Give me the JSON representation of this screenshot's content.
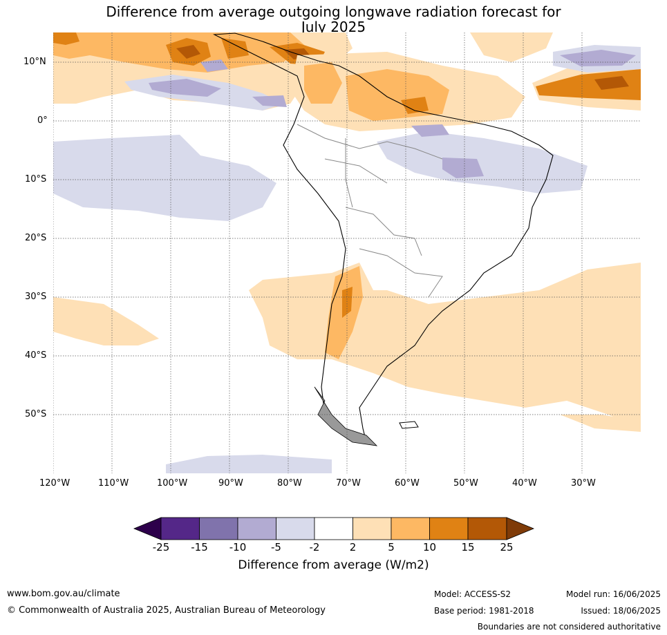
{
  "title": {
    "line1": "Difference from average outgoing longwave radiation forecast for",
    "line2": "July 2025"
  },
  "map": {
    "lat_labels": [
      "10°N",
      "0°",
      "10°S",
      "20°S",
      "30°S",
      "40°S",
      "50°S"
    ],
    "lon_labels": [
      "120°W",
      "110°W",
      "100°W",
      "90°W",
      "80°W",
      "70°W",
      "60°W",
      "50°W",
      "40°W",
      "30°W"
    ]
  },
  "colorbar": {
    "title": "Difference from average (W/m2)",
    "ticks": [
      "-25",
      "-15",
      "-10",
      "-5",
      "-2",
      "2",
      "5",
      "10",
      "15",
      "25"
    ],
    "colors": {
      "lt_m25": "#2d004b",
      "m25_m15": "#542788",
      "m15_m10": "#8073ac",
      "m10_m5": "#b2abd2",
      "m5_m2": "#d8daeb",
      "m2_2": "#ffffff",
      "p2_5": "#fee0b6",
      "p5_10": "#fdb863",
      "p10_15": "#e08214",
      "p15_25": "#b35806",
      "gt_25": "#7f3b08"
    }
  },
  "footer": {
    "url": "www.bom.gov.au/climate",
    "copyright": "© Commonwealth of Australia 2025, Australian Bureau of Meteorology",
    "model": "Model: ACCESS-S2",
    "base_period": "Base period: 1981-2018",
    "model_run": "Model run: 16/06/2025",
    "issued": "Issued: 18/06/2025",
    "disclaimer": "Boundaries are not considered authoritative"
  }
}
